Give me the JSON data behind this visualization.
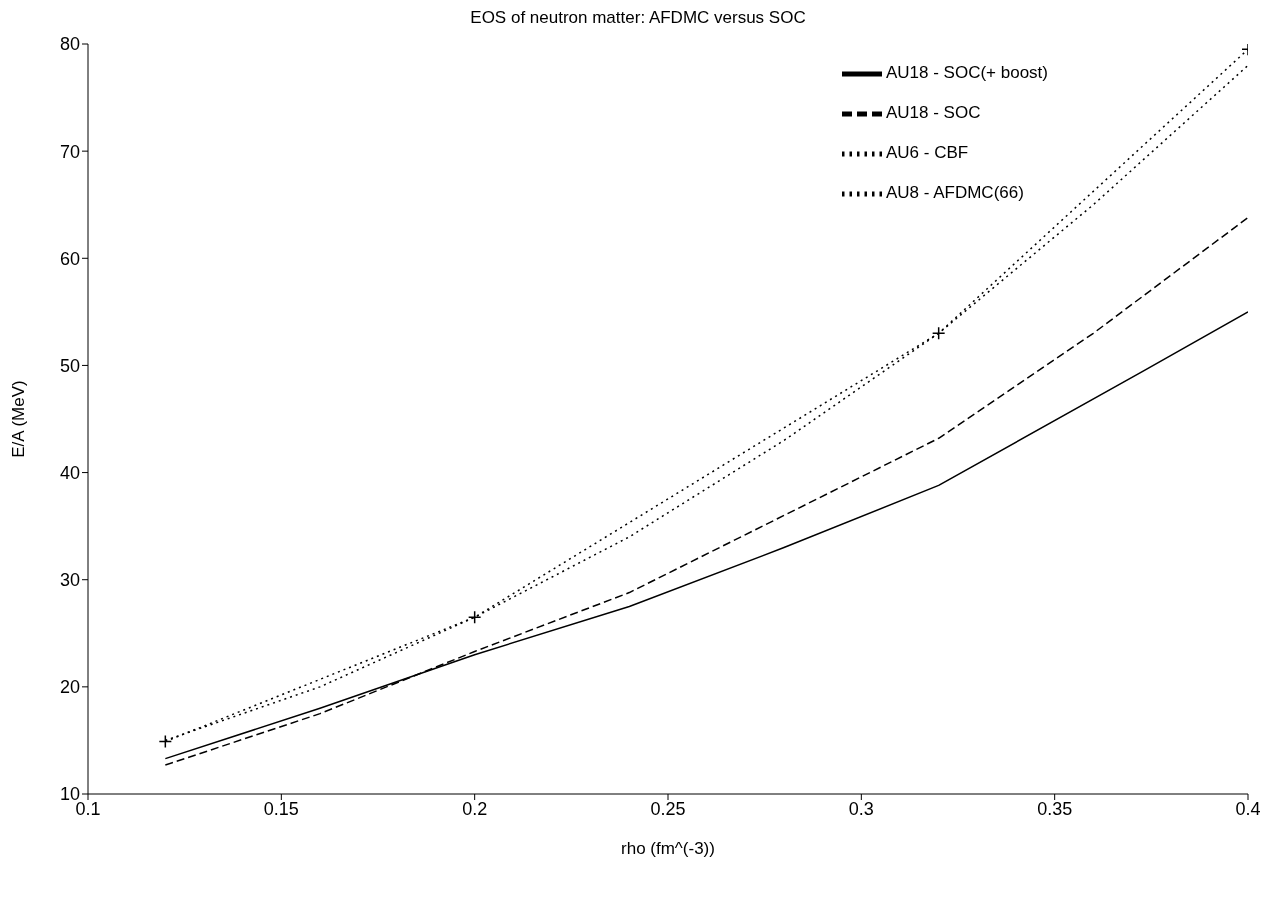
{
  "chart_data": {
    "type": "line",
    "title": "EOS of neutron matter: AFDMC versus SOC",
    "xlabel": "rho (fm^(-3))",
    "ylabel": "E/A (MeV)",
    "xlim": [
      0.1,
      0.4
    ],
    "xticks": [
      0.1,
      0.15,
      0.2,
      0.25,
      0.3,
      0.35,
      0.4
    ],
    "ylim": [
      10,
      80
    ],
    "yticks": [
      10,
      20,
      30,
      40,
      50,
      60,
      70,
      80
    ],
    "grid": false,
    "legend": "top right",
    "series": [
      {
        "name": "AU18 - SOC(+ boost)",
        "color": "#000000",
        "line_style": "solid",
        "marker": "none",
        "x": [
          0.12,
          0.16,
          0.2,
          0.24,
          0.28,
          0.32,
          0.373,
          0.4
        ],
        "values": [
          13.3,
          18,
          23,
          27.5,
          33,
          38.8,
          49.5,
          55
        ]
      },
      {
        "name": "AU18 - SOC",
        "color": "#000000",
        "line_style": "dashed",
        "marker": "none",
        "x": [
          0.12,
          0.16,
          0.2,
          0.24,
          0.28,
          0.32,
          0.36,
          0.4
        ],
        "values": [
          12.7,
          17.5,
          23.3,
          28.8,
          36,
          43.2,
          53,
          63.8
        ]
      },
      {
        "name": "AU6 - CBF",
        "color": "#000000",
        "line_style": "dotted",
        "marker": "none",
        "x": [
          0.12,
          0.16,
          0.2,
          0.24,
          0.28,
          0.32,
          0.36,
          0.4
        ],
        "values": [
          15,
          20,
          26.5,
          34,
          43,
          53,
          65,
          78
        ]
      },
      {
        "name": "AU8 - AFDMC(66)",
        "color": "#000000",
        "line_style": "dotted",
        "marker": "cross",
        "x": [
          0.12,
          0.2,
          0.32,
          0.4
        ],
        "values": [
          14.9,
          26.5,
          53,
          79.5
        ]
      }
    ]
  }
}
